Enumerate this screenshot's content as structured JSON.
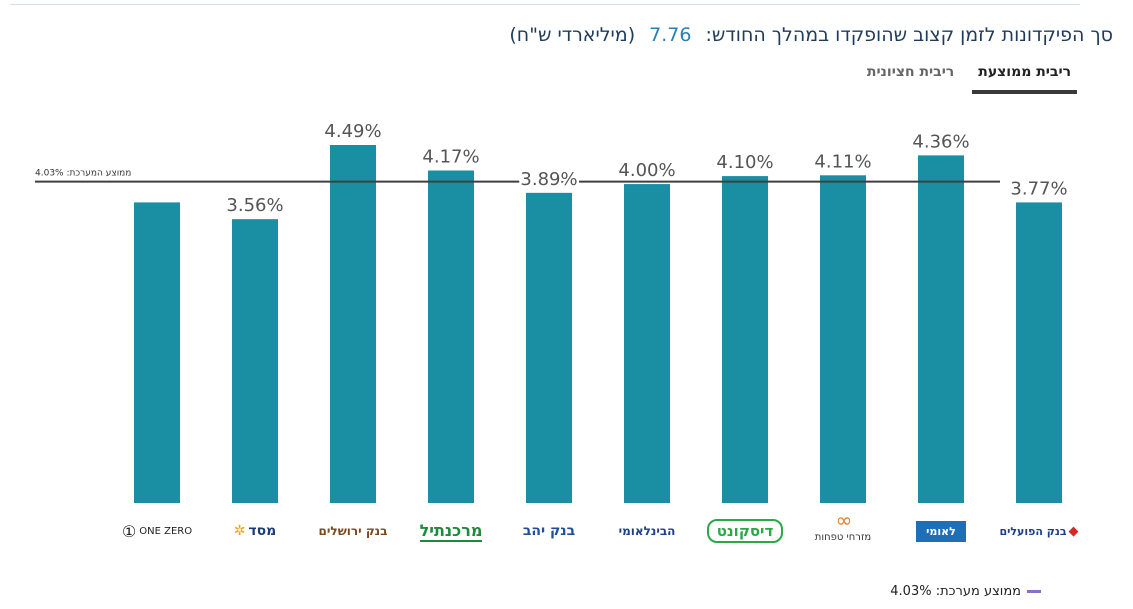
{
  "header": {
    "title_prefix": "סך הפיקדונות לזמן קצוב שהופקדו במהלך החודש:",
    "total_value": "7.76",
    "title_unit": "(מיליארדי ש\"ח)"
  },
  "tabs": [
    {
      "label": "ריבית ממוצעת",
      "active": true
    },
    {
      "label": "ריבית חציונית",
      "active": false
    }
  ],
  "legend": {
    "label": "ממוצע מערכת: 4.03%",
    "color": "#8a6fc6"
  },
  "colors": {
    "bar": "#1a8fa3",
    "average_line": "#3f3f3f",
    "label": "#555555"
  },
  "chart_data": {
    "type": "bar",
    "title": "סך הפיקדונות לזמן קצוב שהופקדו במהלך החודש",
    "categories": [
      "ONE ZERO",
      "מסד",
      "בנק ירושלים",
      "מרכנתיל",
      "בנק יהב",
      "הבינלאומי",
      "דיסקונט",
      "מזרחי טפחות",
      "לאומי",
      "בנק הפועלים"
    ],
    "values": [
      3.77,
      3.56,
      4.49,
      4.17,
      3.89,
      4.0,
      4.1,
      4.11,
      4.36,
      3.77
    ],
    "labels": [
      "",
      "3.56%",
      "4.49%",
      "4.17%",
      "3.89%",
      "4.00%",
      "4.10%",
      "4.11%",
      "4.36%",
      "3.77%"
    ],
    "unit": "%",
    "average": 4.03,
    "average_label": "ממוצע המערכת: 4.03%",
    "ylim": [
      0,
      4.49
    ],
    "grid": false,
    "xlabel": "",
    "ylabel": ""
  },
  "logos": [
    {
      "name": "one-zero",
      "text": "ONE ZERO",
      "color": "#222222"
    },
    {
      "name": "masad",
      "text": "מסד",
      "color": "#1b3a7a"
    },
    {
      "name": "jerusalem",
      "text": "בנק ירושלים",
      "color": "#7a4a1c"
    },
    {
      "name": "mercantile",
      "text": "מרכנתיל",
      "color": "#1e8a3c"
    },
    {
      "name": "yahav",
      "text": "בנק יהב",
      "color": "#1f4f9a"
    },
    {
      "name": "beinleumi",
      "text": "הבינלאומי",
      "color": "#1f3f8a"
    },
    {
      "name": "discount",
      "text": "דיסקונט",
      "color": "#2aa84a"
    },
    {
      "name": "mizrahi",
      "text": "מזרחי טפחות",
      "color": "#333333"
    },
    {
      "name": "leumi",
      "text": "לאומי",
      "color": "#ffffff"
    },
    {
      "name": "hapoalim",
      "text": "בנק הפועלים",
      "color": "#1f3f8a"
    }
  ]
}
